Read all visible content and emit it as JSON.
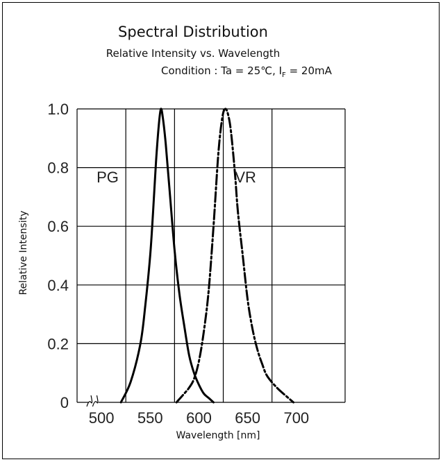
{
  "chart_data": {
    "type": "line",
    "title": "Spectral Distribution",
    "subtitle": "Relative Intensity vs. Wavelength",
    "condition": {
      "prefix": "Condition : Ta = 25℃, I",
      "subscript": "F",
      "suffix": " = 20mA"
    },
    "xlabel": "Wavelength [nm]",
    "ylabel": "Relative Intensity",
    "xlim": [
      475,
      750
    ],
    "ylim": [
      0,
      1.0
    ],
    "xticks": [
      500,
      550,
      600,
      650,
      700
    ],
    "xtick_labels": [
      "500",
      "550",
      "600",
      "650",
      "700"
    ],
    "yticks": [
      0,
      0.2,
      0.4,
      0.6,
      0.8,
      1.0
    ],
    "ytick_labels": [
      "0",
      "0.2",
      "0.4",
      "0.6",
      "0.8",
      "1.0"
    ],
    "grid": true,
    "axis_break": true,
    "series": [
      {
        "name": "PG",
        "line_style": "solid",
        "color": "#000000",
        "x": [
          520,
          530,
          540,
          545,
          550,
          553,
          556,
          559,
          561,
          563,
          566,
          570,
          575,
          580,
          585,
          590,
          595,
          600,
          605,
          610,
          615
        ],
        "y": [
          0.0,
          0.07,
          0.2,
          0.33,
          0.5,
          0.65,
          0.82,
          0.95,
          1.0,
          0.97,
          0.88,
          0.72,
          0.52,
          0.37,
          0.26,
          0.16,
          0.1,
          0.06,
          0.03,
          0.015,
          0.0
        ]
      },
      {
        "name": "VR",
        "line_style": "dash-dot",
        "color": "#000000",
        "x": [
          577,
          585,
          590,
          595,
          600,
          605,
          610,
          615,
          620,
          624,
          627,
          630,
          633,
          637,
          640,
          645,
          650,
          655,
          660,
          665,
          670,
          680,
          690,
          697
        ],
        "y": [
          0.0,
          0.03,
          0.05,
          0.08,
          0.14,
          0.24,
          0.38,
          0.6,
          0.85,
          0.97,
          1.0,
          0.98,
          0.92,
          0.78,
          0.65,
          0.5,
          0.35,
          0.25,
          0.18,
          0.13,
          0.09,
          0.05,
          0.02,
          0.0
        ]
      }
    ]
  }
}
